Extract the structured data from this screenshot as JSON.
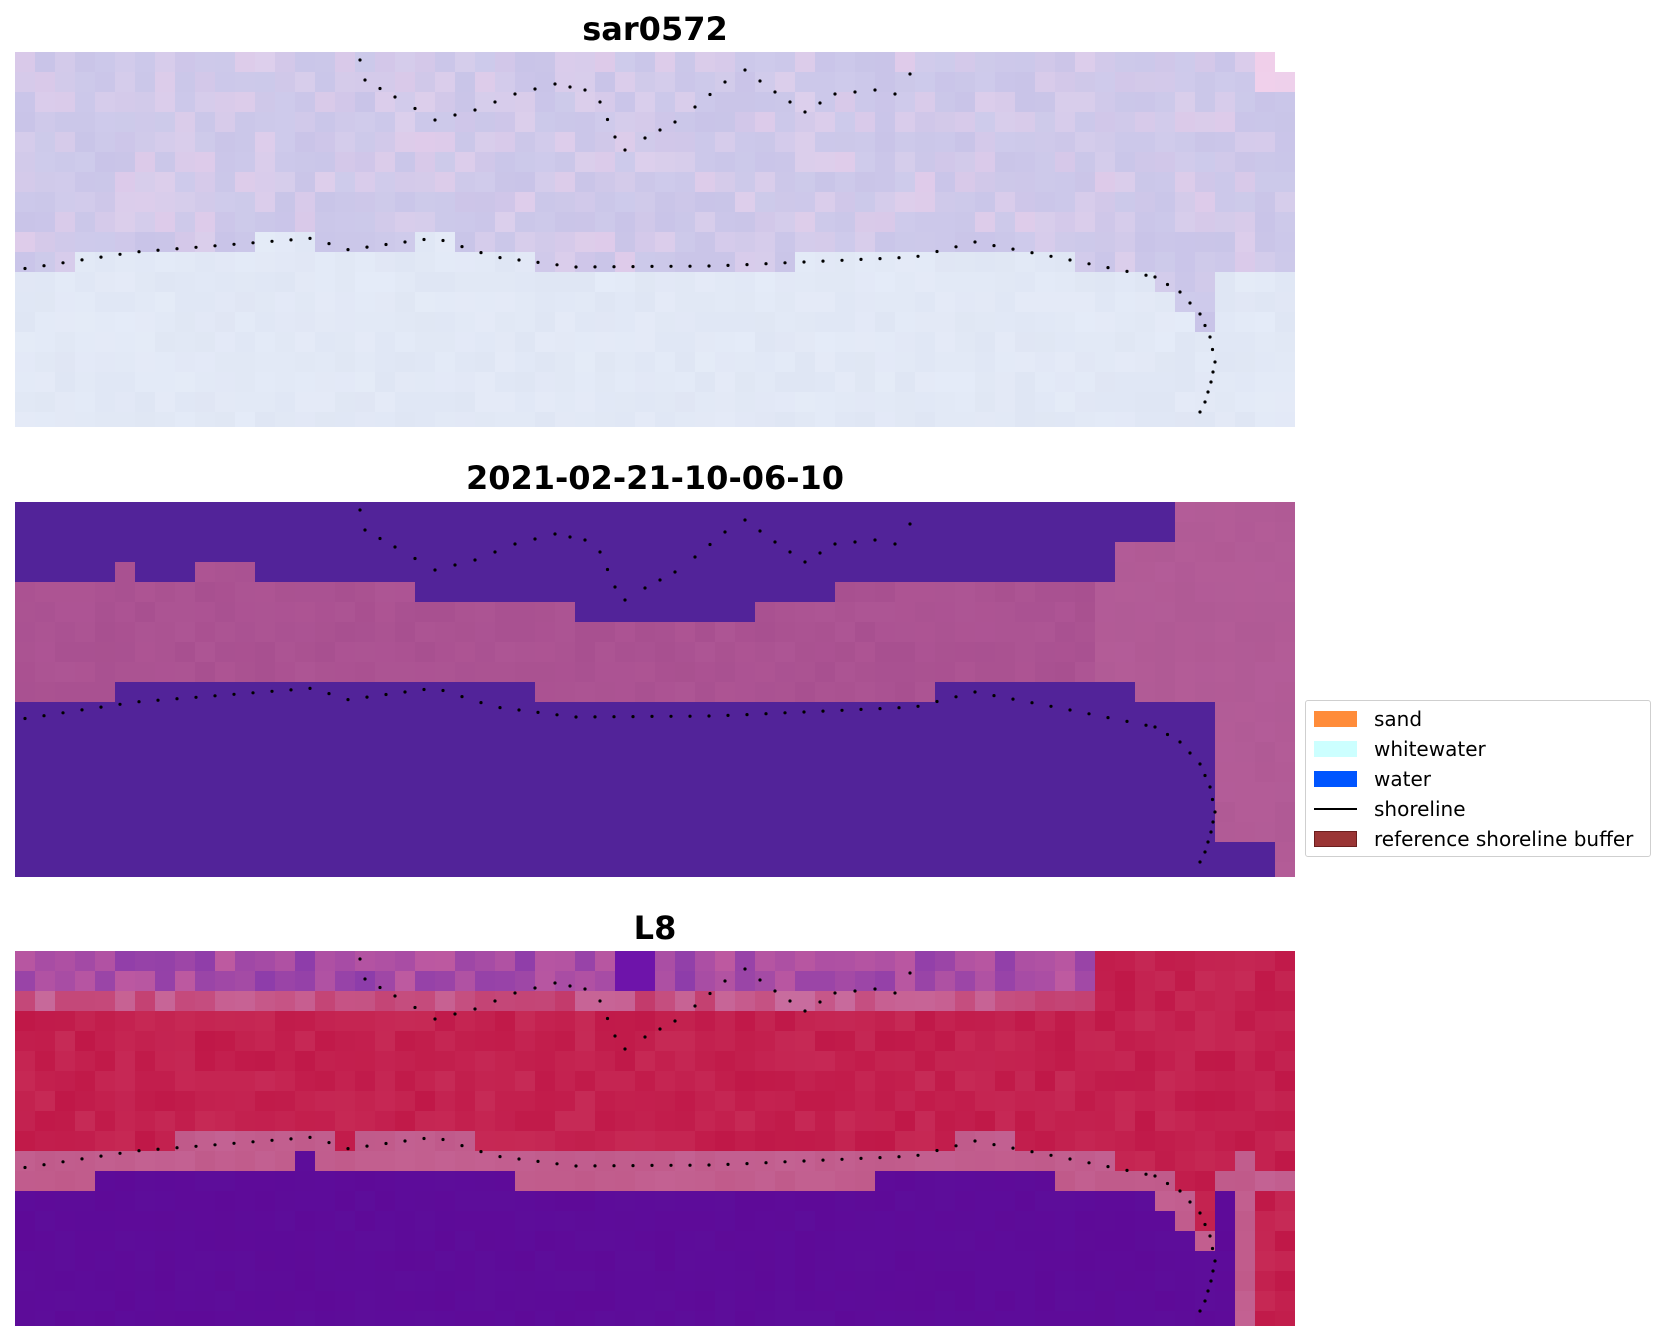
{
  "panels": [
    {
      "id": "top",
      "title": "sar0572"
    },
    {
      "id": "middle",
      "title": "2021-02-21-10-06-10"
    },
    {
      "id": "bottom",
      "title": "L8"
    }
  ],
  "legend": {
    "items": [
      {
        "label": "sand",
        "kind": "patch",
        "color": "#ff8c3a",
        "edge": "#ff8c3a"
      },
      {
        "label": "whitewater",
        "kind": "patch",
        "color": "#ccffff",
        "edge": "#ccffff"
      },
      {
        "label": "water",
        "kind": "patch",
        "color": "#0055ff",
        "edge": "#0055ff"
      },
      {
        "label": "shoreline",
        "kind": "line",
        "color": "#000000"
      },
      {
        "label": "reference shoreline buffer",
        "kind": "patch",
        "color": "#9a3535",
        "edge": "#6b1e1e"
      }
    ]
  },
  "colors": {
    "sar_water": "#dfe6f4",
    "sar_land": "#c9c4e8",
    "sar_pink": "#e6cdea",
    "class_water": "#522399",
    "class_land": "#a85090",
    "class_land_right": "#b05a95",
    "l8_water": "#5e0a98",
    "l8_land": "#c01848",
    "l8_edge": "#c05a8a",
    "shoreline_dots": "#000000"
  }
}
